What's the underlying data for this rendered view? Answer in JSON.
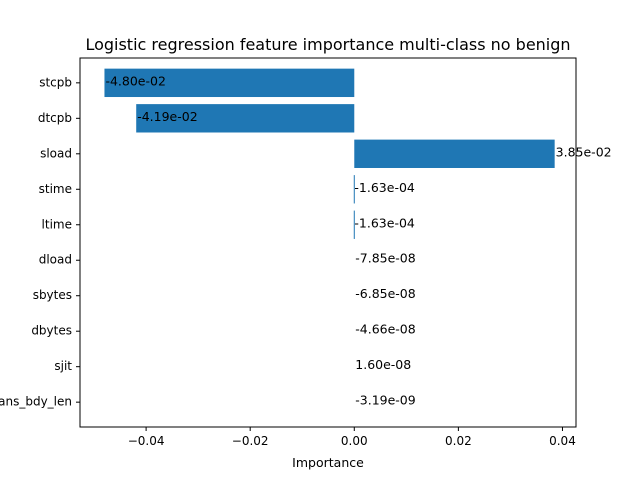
{
  "chart_data": {
    "type": "bar",
    "orientation": "horizontal",
    "title": "Logistic regression feature importance multi-class no benign",
    "xlabel": "Importance",
    "ylabel": "",
    "categories": [
      "stcpb",
      "dtcpb",
      "sload",
      "stime",
      "ltime",
      "dload",
      "sbytes",
      "dbytes",
      "sjit",
      "trans_bdy_len"
    ],
    "values": [
      -0.048,
      -0.0419,
      0.0385,
      -0.000163,
      -0.000163,
      -7.85e-08,
      -6.85e-08,
      -4.66e-08,
      1.6e-08,
      -3.19e-09
    ],
    "data_labels": [
      "-4.80e-02",
      "-4.19e-02",
      "3.85e-02",
      "-1.63e-04",
      "-1.63e-04",
      "-7.85e-08",
      "-6.85e-08",
      "-4.66e-08",
      "1.60e-08",
      "-3.19e-09"
    ],
    "x_ticks": [
      -0.04,
      -0.02,
      0.0,
      0.02,
      0.04
    ],
    "x_tick_labels": [
      "−0.04",
      "−0.02",
      "0.00",
      "0.02",
      "0.04"
    ],
    "xlim": [
      -0.0527,
      0.0426
    ],
    "grid": false,
    "bar_color": "#1f77b4"
  }
}
